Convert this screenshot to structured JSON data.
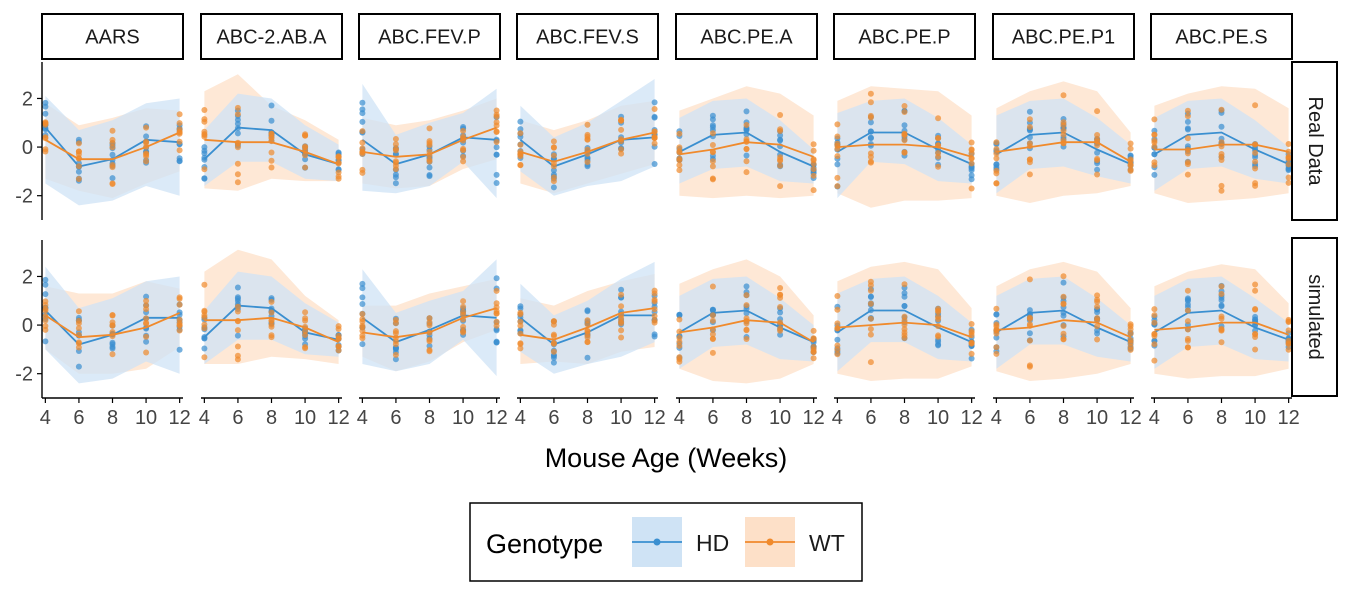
{
  "chart_data": {
    "type": "faceted-line-ribbon",
    "facets_columns": [
      "AARS",
      "ABC-2.AB.A",
      "ABC.FEV.P",
      "ABC.FEV.S",
      "ABC.PE.A",
      "ABC.PE.P",
      "ABC.PE.P1",
      "ABC.PE.S"
    ],
    "facets_rows": [
      "Real Data",
      "simulated"
    ],
    "xlabel": "Mouse Age (Weeks)",
    "ylabel": "",
    "x_ticks": [
      4,
      6,
      8,
      10,
      12
    ],
    "y_ticks": [
      -2,
      0,
      2
    ],
    "xlim": [
      3.8,
      12.2
    ],
    "ylim": [
      -3.0,
      3.5
    ],
    "x": [
      4,
      6,
      8,
      10,
      12
    ],
    "legend": {
      "title": "Genotype",
      "position": "bottom",
      "items": [
        {
          "name": "HD",
          "line_color": "#3a8fd0",
          "fill_color": "#cfe3f5"
        },
        {
          "name": "WT",
          "line_color": "#f08a2c",
          "fill_color": "#fde0c8"
        }
      ]
    },
    "panels": [
      {
        "row": "Real Data",
        "col": "AARS",
        "HD": {
          "mean": [
            0.8,
            -0.8,
            -0.5,
            0.3,
            0.2
          ],
          "lower": [
            -1.5,
            -2.4,
            -2.2,
            -1.6,
            -2.0
          ],
          "upper": [
            2.1,
            0.7,
            1.1,
            1.8,
            2.0
          ]
        },
        "WT": {
          "mean": [
            0.3,
            -0.5,
            -0.5,
            0.0,
            0.6
          ],
          "lower": [
            -1.3,
            -1.8,
            -2.1,
            -1.5,
            -1.0
          ],
          "upper": [
            1.8,
            0.9,
            1.2,
            1.6,
            1.5
          ]
        }
      },
      {
        "row": "Real Data",
        "col": "ABC-2.AB.A",
        "HD": {
          "mean": [
            -0.5,
            0.8,
            0.7,
            -0.3,
            -0.7
          ],
          "lower": [
            -1.6,
            -0.6,
            -0.6,
            -1.3,
            -1.4
          ],
          "upper": [
            0.7,
            2.2,
            2.0,
            0.9,
            0.1
          ]
        },
        "WT": {
          "mean": [
            0.3,
            0.2,
            0.2,
            -0.2,
            -0.7
          ],
          "lower": [
            -1.7,
            -1.8,
            -1.3,
            -1.4,
            -1.4
          ],
          "upper": [
            2.3,
            3.0,
            1.7,
            1.1,
            0.3
          ]
        }
      },
      {
        "row": "Real Data",
        "col": "ABC.FEV.P",
        "HD": {
          "mean": [
            0.3,
            -0.7,
            -0.3,
            0.4,
            0.3
          ],
          "lower": [
            -1.8,
            -1.9,
            -1.6,
            -0.6,
            -2.1
          ],
          "upper": [
            2.6,
            0.5,
            1.0,
            1.4,
            2.4
          ]
        },
        "WT": {
          "mean": [
            -0.2,
            -0.4,
            -0.3,
            0.3,
            0.8
          ],
          "lower": [
            -1.5,
            -1.7,
            -1.6,
            -0.9,
            -0.5
          ],
          "upper": [
            1.2,
            0.9,
            1.1,
            1.5,
            2.0
          ]
        }
      },
      {
        "row": "Real Data",
        "col": "ABC.FEV.S",
        "HD": {
          "mean": [
            0.3,
            -0.8,
            -0.3,
            0.3,
            0.4
          ],
          "lower": [
            -1.0,
            -2.0,
            -1.6,
            -1.4,
            -0.8
          ],
          "upper": [
            1.7,
            0.4,
            1.0,
            1.9,
            2.8
          ]
        },
        "WT": {
          "mean": [
            -0.2,
            -0.6,
            -0.2,
            0.3,
            0.6
          ],
          "lower": [
            -1.5,
            -1.9,
            -1.5,
            -1.1,
            -0.7
          ],
          "upper": [
            1.1,
            0.7,
            1.1,
            1.7,
            1.9
          ]
        }
      },
      {
        "row": "Real Data",
        "col": "ABC.PE.A",
        "HD": {
          "mean": [
            -0.2,
            0.5,
            0.6,
            -0.2,
            -0.8
          ],
          "lower": [
            -1.5,
            -0.9,
            -0.8,
            -1.4,
            -1.5
          ],
          "upper": [
            1.2,
            1.9,
            2.0,
            1.1,
            -0.1
          ]
        },
        "WT": {
          "mean": [
            -0.3,
            -0.1,
            0.2,
            0.1,
            -0.4
          ],
          "lower": [
            -2.0,
            -2.1,
            -2.0,
            -2.1,
            -2.0
          ],
          "upper": [
            1.5,
            2.0,
            2.5,
            2.2,
            1.3
          ]
        }
      },
      {
        "row": "Real Data",
        "col": "ABC.PE.P",
        "HD": {
          "mean": [
            -0.2,
            0.6,
            0.6,
            -0.1,
            -0.7
          ],
          "lower": [
            -2.1,
            -0.6,
            -0.7,
            -1.4,
            -1.5
          ],
          "upper": [
            1.4,
            1.9,
            2.0,
            1.2,
            0.1
          ]
        },
        "WT": {
          "mean": [
            0.0,
            0.1,
            0.1,
            0.0,
            -0.4
          ],
          "lower": [
            -1.9,
            -2.5,
            -2.2,
            -2.2,
            -2.1
          ],
          "upper": [
            1.9,
            2.5,
            2.4,
            2.3,
            1.3
          ]
        }
      },
      {
        "row": "Real Data",
        "col": "ABC.PE.P1",
        "HD": {
          "mean": [
            -0.3,
            0.5,
            0.6,
            -0.1,
            -0.7
          ],
          "lower": [
            -1.9,
            -0.9,
            -0.8,
            -1.2,
            -1.5
          ],
          "upper": [
            1.3,
            1.9,
            2.0,
            1.2,
            0.1
          ]
        },
        "WT": {
          "mean": [
            -0.2,
            0.0,
            0.2,
            0.2,
            -0.6
          ],
          "lower": [
            -2.0,
            -2.3,
            -2.0,
            -1.9,
            -1.6
          ],
          "upper": [
            1.6,
            2.3,
            2.7,
            2.3,
            0.6
          ]
        }
      },
      {
        "row": "Real Data",
        "col": "ABC.PE.S",
        "HD": {
          "mean": [
            -0.3,
            0.5,
            0.6,
            -0.1,
            -0.7
          ],
          "lower": [
            -1.8,
            -0.9,
            -0.8,
            -1.3,
            -1.5
          ],
          "upper": [
            1.2,
            1.9,
            2.0,
            1.1,
            0.0
          ]
        },
        "WT": {
          "mean": [
            -0.1,
            -0.1,
            0.1,
            0.1,
            -0.2
          ],
          "lower": [
            -1.9,
            -2.3,
            -2.2,
            -2.1,
            -1.9
          ],
          "upper": [
            1.7,
            2.2,
            2.5,
            2.4,
            1.6
          ]
        }
      },
      {
        "row": "simulated",
        "col": "AARS",
        "HD": {
          "mean": [
            0.6,
            -0.8,
            -0.4,
            0.3,
            0.3
          ],
          "lower": [
            -1.0,
            -2.4,
            -2.2,
            -1.5,
            -2.0
          ],
          "upper": [
            2.4,
            0.7,
            1.1,
            1.8,
            2.0
          ]
        },
        "WT": {
          "mean": [
            0.4,
            -0.5,
            -0.4,
            -0.1,
            0.5
          ],
          "lower": [
            -1.0,
            -2.0,
            -2.0,
            -1.8,
            -0.9
          ],
          "upper": [
            1.6,
            1.3,
            1.3,
            1.8,
            1.5
          ]
        }
      },
      {
        "row": "simulated",
        "col": "ABC-2.AB.A",
        "HD": {
          "mean": [
            -0.5,
            0.8,
            0.7,
            -0.3,
            -0.6
          ],
          "lower": [
            -1.6,
            -0.6,
            -0.6,
            -1.2,
            -1.3
          ],
          "upper": [
            0.6,
            2.2,
            2.0,
            0.9,
            0.1
          ]
        },
        "WT": {
          "mean": [
            0.2,
            0.2,
            0.3,
            -0.1,
            -0.7
          ],
          "lower": [
            -1.6,
            -1.6,
            -1.3,
            -1.4,
            -1.6
          ],
          "upper": [
            2.2,
            3.1,
            2.7,
            1.2,
            0.2
          ]
        }
      },
      {
        "row": "simulated",
        "col": "ABC.FEV.P",
        "HD": {
          "mean": [
            0.3,
            -0.7,
            -0.2,
            0.4,
            0.3
          ],
          "lower": [
            -1.6,
            -1.9,
            -1.6,
            -0.6,
            -2.1
          ],
          "upper": [
            2.3,
            0.5,
            1.0,
            1.4,
            2.7
          ]
        },
        "WT": {
          "mean": [
            -0.3,
            -0.5,
            -0.3,
            0.3,
            0.7
          ],
          "lower": [
            -1.3,
            -1.9,
            -1.5,
            -0.7,
            -0.2
          ],
          "upper": [
            0.8,
            0.8,
            1.3,
            1.6,
            1.9
          ]
        }
      },
      {
        "row": "simulated",
        "col": "ABC.FEV.S",
        "HD": {
          "mean": [
            0.3,
            -0.8,
            -0.3,
            0.4,
            0.4
          ],
          "lower": [
            -1.1,
            -2.0,
            -1.6,
            -1.3,
            -0.7
          ],
          "upper": [
            1.7,
            0.4,
            1.0,
            1.9,
            2.6
          ]
        },
        "WT": {
          "mean": [
            -0.4,
            -0.6,
            -0.1,
            0.5,
            0.7
          ],
          "lower": [
            -1.6,
            -1.5,
            -1.6,
            -1.1,
            -0.9
          ],
          "upper": [
            1.1,
            0.8,
            1.4,
            1.8,
            2.1
          ]
        }
      },
      {
        "row": "simulated",
        "col": "ABC.PE.A",
        "HD": {
          "mean": [
            -0.3,
            0.5,
            0.6,
            -0.1,
            -0.7
          ],
          "lower": [
            -1.8,
            -0.9,
            -0.8,
            -1.4,
            -1.5
          ],
          "upper": [
            1.2,
            1.9,
            2.0,
            1.1,
            0.0
          ]
        },
        "WT": {
          "mean": [
            -0.3,
            -0.1,
            0.2,
            0.1,
            -0.7
          ],
          "lower": [
            -1.8,
            -2.3,
            -2.4,
            -2.2,
            -1.6
          ],
          "upper": [
            1.7,
            2.3,
            2.7,
            2.0,
            0.4
          ]
        }
      },
      {
        "row": "simulated",
        "col": "ABC.PE.P",
        "HD": {
          "mean": [
            -0.3,
            0.6,
            0.6,
            -0.1,
            -0.7
          ],
          "lower": [
            -1.9,
            -0.7,
            -0.7,
            -1.4,
            -1.5
          ],
          "upper": [
            1.3,
            1.9,
            2.0,
            1.2,
            0.1
          ]
        },
        "WT": {
          "mean": [
            -0.1,
            0.0,
            0.1,
            0.0,
            -0.5
          ],
          "lower": [
            -2.0,
            -2.3,
            -2.2,
            -2.2,
            -1.7
          ],
          "upper": [
            1.8,
            2.4,
            2.6,
            2.3,
            0.7
          ]
        }
      },
      {
        "row": "simulated",
        "col": "ABC.PE.P1",
        "HD": {
          "mean": [
            -0.3,
            0.5,
            0.6,
            -0.1,
            -0.7
          ],
          "lower": [
            -1.8,
            -0.8,
            -0.8,
            -1.3,
            -1.5
          ],
          "upper": [
            1.2,
            1.9,
            2.0,
            1.1,
            0.0
          ]
        },
        "WT": {
          "mean": [
            -0.2,
            -0.1,
            0.2,
            0.1,
            -0.5
          ],
          "lower": [
            -1.9,
            -2.3,
            -2.2,
            -2.0,
            -1.6
          ],
          "upper": [
            1.6,
            2.3,
            2.6,
            2.2,
            0.7
          ]
        }
      },
      {
        "row": "simulated",
        "col": "ABC.PE.S",
        "HD": {
          "mean": [
            -0.3,
            0.5,
            0.6,
            -0.1,
            -0.6
          ],
          "lower": [
            -1.8,
            -0.9,
            -0.8,
            -1.4,
            -1.5
          ],
          "upper": [
            1.2,
            1.9,
            2.0,
            1.1,
            0.1
          ]
        },
        "WT": {
          "mean": [
            -0.2,
            -0.1,
            0.1,
            0.1,
            -0.4
          ],
          "lower": [
            -2.0,
            -2.2,
            -2.1,
            -2.1,
            -1.8
          ],
          "upper": [
            1.6,
            2.2,
            2.5,
            2.3,
            0.9
          ]
        }
      }
    ]
  }
}
